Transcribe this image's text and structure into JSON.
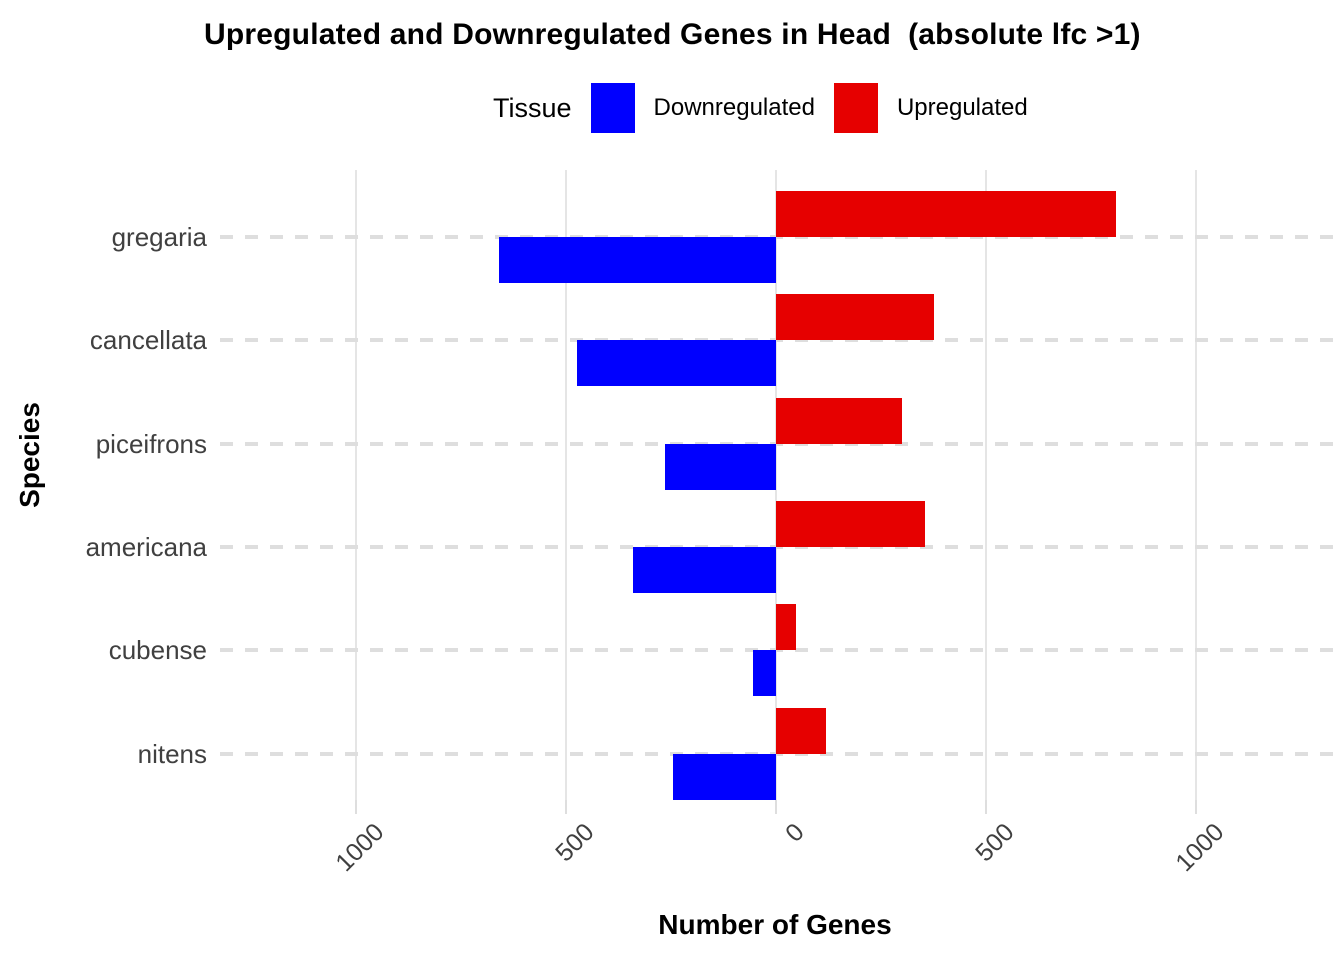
{
  "title": "Upregulated and Downregulated Genes in Head  (absolute lfc >1)",
  "legend": {
    "title": "Tissue",
    "items": [
      {
        "label": "Downregulated",
        "color": "#0000FF"
      },
      {
        "label": "Upregulated",
        "color": "#E60000"
      }
    ]
  },
  "chart_data": {
    "type": "bar",
    "orientation": "horizontal-diverging",
    "title": "Upregulated and Downregulated Genes in Head  (absolute lfc >1)",
    "xlabel": "Number of Genes",
    "ylabel": "Species",
    "categories": [
      "gregaria",
      "cancellata",
      "piceifrons",
      "americana",
      "cubense",
      "nitens"
    ],
    "series": [
      {
        "name": "Upregulated",
        "color": "#E60000",
        "direction": "right",
        "values": [
          810,
          375,
          300,
          355,
          48,
          120
        ]
      },
      {
        "name": "Downregulated",
        "color": "#0000FF",
        "direction": "left",
        "values": [
          660,
          475,
          265,
          340,
          55,
          245
        ]
      }
    ],
    "x_ticks": {
      "labels": [
        "1000",
        "500",
        "0",
        "500",
        "1000"
      ],
      "values": [
        -1000,
        -500,
        0,
        500,
        1000
      ]
    },
    "xlim": [
      -1340,
      1350
    ],
    "grid": {
      "vertical": "solid",
      "horizontal": "dashed"
    },
    "legend_position": "top"
  }
}
